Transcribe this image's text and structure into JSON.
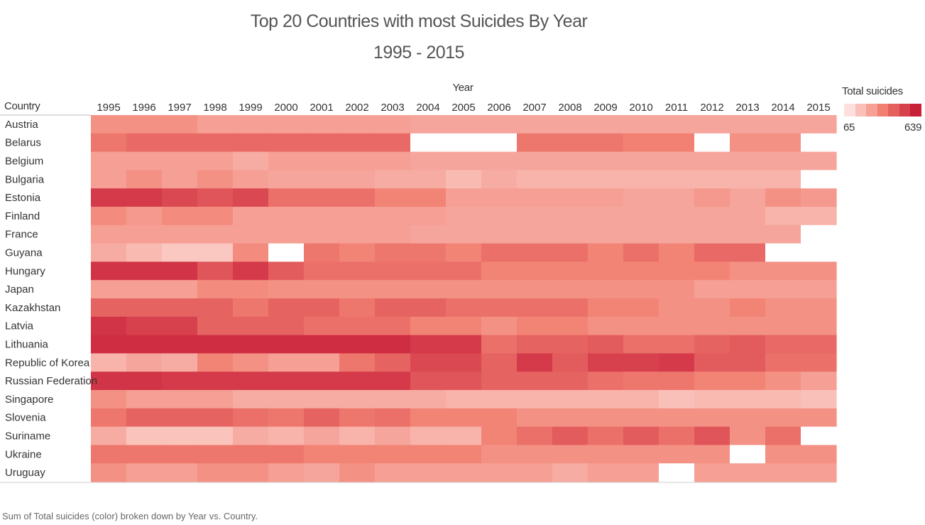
{
  "chart_data": {
    "type": "heatmap",
    "title": "Top 20 Countries with most Suicides By Year",
    "subtitle": "1995 - 2015",
    "xlabel": "Year",
    "ylabel": "Country",
    "x": [
      "1995",
      "1996",
      "1997",
      "1998",
      "1999",
      "2000",
      "2001",
      "2002",
      "2003",
      "2004",
      "2005",
      "2006",
      "2007",
      "2008",
      "2009",
      "2010",
      "2011",
      "2012",
      "2013",
      "2014",
      "2015"
    ],
    "y": [
      "Austria",
      "Belarus",
      "Belgium",
      "Bulgaria",
      "Estonia",
      "Finland",
      "France",
      "Guyana",
      "Hungary",
      "Japan",
      "Kazakhstan",
      "Latvia",
      "Lithuania",
      "Republic of Korea",
      "Russian Federation",
      "Singapore",
      "Slovenia",
      "Suriname",
      "Ukraine",
      "Uruguay"
    ],
    "values": [
      [
        300,
        300,
        300,
        260,
        260,
        260,
        260,
        260,
        260,
        240,
        240,
        240,
        240,
        240,
        240,
        240,
        240,
        240,
        240,
        240,
        240
      ],
      [
        380,
        420,
        420,
        420,
        420,
        420,
        420,
        420,
        420,
        null,
        null,
        null,
        380,
        380,
        380,
        350,
        350,
        null,
        300,
        300,
        null
      ],
      [
        260,
        260,
        260,
        260,
        220,
        260,
        260,
        260,
        260,
        240,
        240,
        240,
        240,
        240,
        240,
        240,
        240,
        240,
        240,
        240,
        240
      ],
      [
        260,
        300,
        260,
        300,
        260,
        240,
        240,
        240,
        220,
        220,
        180,
        220,
        200,
        200,
        200,
        200,
        200,
        200,
        200,
        200,
        null
      ],
      [
        560,
        560,
        520,
        480,
        520,
        400,
        400,
        400,
        340,
        340,
        260,
        260,
        260,
        260,
        260,
        240,
        240,
        280,
        240,
        300,
        280
      ],
      [
        320,
        280,
        320,
        320,
        260,
        260,
        260,
        260,
        260,
        260,
        240,
        240,
        240,
        240,
        240,
        240,
        240,
        240,
        240,
        200,
        200
      ],
      [
        260,
        260,
        260,
        260,
        260,
        260,
        260,
        260,
        260,
        240,
        240,
        240,
        240,
        240,
        240,
        240,
        240,
        240,
        240,
        240,
        null
      ],
      [
        220,
        180,
        140,
        140,
        320,
        null,
        380,
        340,
        380,
        380,
        340,
        400,
        400,
        400,
        340,
        400,
        340,
        420,
        420,
        null,
        null
      ],
      [
        580,
        580,
        580,
        480,
        560,
        460,
        400,
        400,
        400,
        400,
        400,
        340,
        340,
        340,
        340,
        340,
        340,
        340,
        300,
        300,
        300
      ],
      [
        260,
        260,
        260,
        320,
        320,
        300,
        300,
        300,
        300,
        300,
        300,
        300,
        300,
        300,
        300,
        300,
        300,
        260,
        260,
        260,
        260
      ],
      [
        440,
        440,
        440,
        440,
        380,
        440,
        440,
        380,
        440,
        440,
        400,
        400,
        400,
        400,
        340,
        340,
        300,
        300,
        340,
        300,
        300
      ],
      [
        580,
        540,
        540,
        440,
        440,
        440,
        400,
        400,
        400,
        340,
        340,
        300,
        340,
        340,
        300,
        300,
        300,
        300,
        300,
        300,
        300
      ],
      [
        600,
        600,
        600,
        600,
        600,
        600,
        600,
        600,
        600,
        560,
        560,
        400,
        440,
        440,
        460,
        400,
        400,
        440,
        460,
        420,
        420
      ],
      [
        200,
        240,
        220,
        340,
        300,
        260,
        260,
        380,
        440,
        520,
        520,
        440,
        560,
        460,
        540,
        540,
        560,
        460,
        460,
        400,
        400
      ],
      [
        580,
        580,
        560,
        560,
        560,
        560,
        560,
        560,
        560,
        480,
        480,
        440,
        440,
        440,
        400,
        380,
        380,
        340,
        340,
        300,
        260
      ],
      [
        300,
        260,
        260,
        260,
        220,
        220,
        220,
        220,
        220,
        220,
        200,
        200,
        200,
        200,
        200,
        200,
        160,
        180,
        180,
        180,
        160
      ],
      [
        380,
        440,
        440,
        440,
        400,
        380,
        440,
        380,
        400,
        340,
        340,
        340,
        300,
        300,
        300,
        300,
        300,
        300,
        300,
        300,
        300
      ],
      [
        220,
        150,
        150,
        150,
        220,
        200,
        240,
        200,
        240,
        200,
        200,
        340,
        400,
        460,
        400,
        460,
        400,
        480,
        300,
        400,
        null
      ],
      [
        380,
        380,
        380,
        380,
        380,
        380,
        340,
        340,
        340,
        340,
        340,
        300,
        300,
        300,
        300,
        300,
        300,
        300,
        null,
        300,
        300
      ],
      [
        300,
        260,
        260,
        300,
        300,
        260,
        240,
        300,
        260,
        260,
        260,
        260,
        260,
        220,
        260,
        260,
        null,
        260,
        260,
        260,
        260
      ]
    ],
    "color_scale": {
      "min_label": "65",
      "max_label": "639",
      "low_color": "#fde0dd",
      "high_color": "#c9203a",
      "mid_color": "#f28072"
    },
    "legend_title": "Total suicides",
    "legend_position": "top-right",
    "missing_color": "#ffffff",
    "footer": "Sum of Total suicides (color) broken down by Year vs. Country."
  }
}
